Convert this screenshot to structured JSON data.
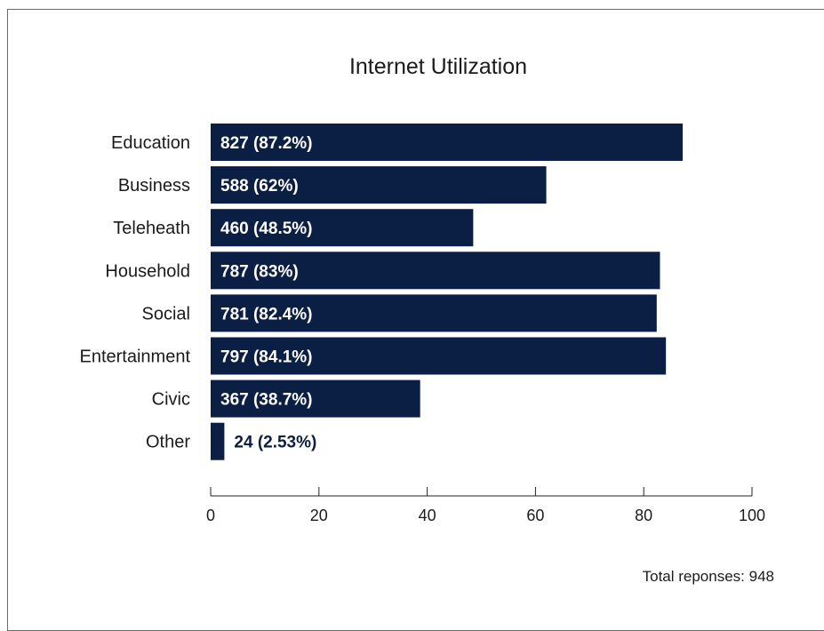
{
  "chart_data": {
    "type": "bar",
    "orientation": "horizontal",
    "title": "Internet Utilization",
    "categories": [
      "Education",
      "Business",
      "Teleheath",
      "Household",
      "Social",
      "Entertainment",
      "Civic",
      "Other"
    ],
    "values": [
      87.2,
      62,
      48.5,
      83,
      82.4,
      84.1,
      38.7,
      2.53
    ],
    "data_labels": [
      "827 (87.2%)",
      "588 (62%)",
      "460 (48.5%)",
      "787 (83%)",
      "781 (82.4%)",
      "797 (84.1%)",
      "367 (38.7%)",
      "24 (2.53%)"
    ],
    "xlim": [
      0,
      100
    ],
    "x_ticks": [
      "0",
      "20",
      "40",
      "60",
      "80",
      "100"
    ],
    "bar_color": "#0b1f45",
    "label_color_inside": "#ffffff",
    "label_color_outside": "#0b1f45",
    "grid": false,
    "legend": "none"
  },
  "footnote": "Total reponses: 948"
}
